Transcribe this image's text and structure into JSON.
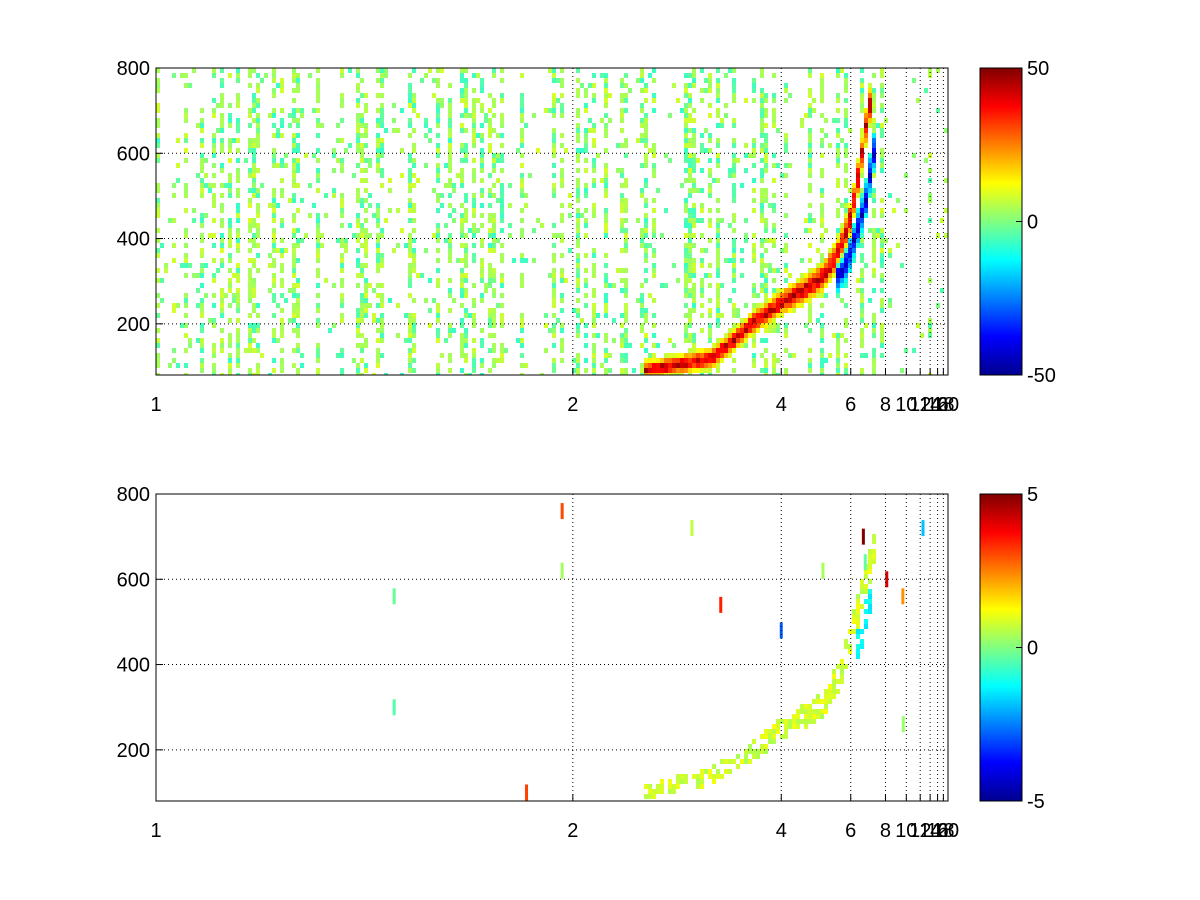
{
  "chart_data": [
    {
      "type": "heatmap",
      "title": "",
      "xlabel": "",
      "ylabel": "",
      "xlim": [
        1,
        20
      ],
      "ylim": [
        80,
        800
      ],
      "x_scale": "reciprocal",
      "x_ticks": [
        1,
        2,
        4,
        6,
        8,
        10,
        12,
        14,
        16,
        18,
        20
      ],
      "x_tick_labels": [
        "1",
        "2",
        "4",
        "6",
        "8",
        "10",
        "12",
        "14",
        "16",
        "18",
        "20"
      ],
      "y_ticks": [
        200,
        400,
        600,
        800
      ],
      "y_tick_labels": [
        "200",
        "400",
        "600",
        "800"
      ],
      "grid": true,
      "colormap": "jet",
      "clim": [
        -50,
        50
      ],
      "colorbar_ticks": [
        50,
        0,
        -50
      ],
      "colorbar_tick_labels": [
        "50",
        "0",
        "-50"
      ],
      "features": [
        {
          "kind": "ridge",
          "sign": "positive",
          "points": [
            [
              2.4,
              90
            ],
            [
              3.0,
              120
            ],
            [
              3.5,
              200
            ],
            [
              4.0,
              250
            ],
            [
              4.5,
              280
            ],
            [
              5.0,
              310
            ],
            [
              5.6,
              380
            ],
            [
              6.0,
              450
            ],
            [
              6.4,
              560
            ],
            [
              6.8,
              680
            ],
            [
              7.2,
              760
            ]
          ],
          "peak": 45
        },
        {
          "kind": "ridge",
          "sign": "negative",
          "points": [
            [
              5.4,
              300
            ],
            [
              5.9,
              350
            ],
            [
              6.3,
              420
            ],
            [
              6.8,
              500
            ],
            [
              7.0,
              560
            ],
            [
              7.3,
              620
            ]
          ],
          "peak": -45
        }
      ],
      "scattered_noise": {
        "x_range": [
          1,
          20
        ],
        "amplitude": 8
      }
    },
    {
      "type": "heatmap",
      "title": "",
      "xlabel": "",
      "ylabel": "",
      "xlim": [
        1,
        20
      ],
      "ylim": [
        80,
        800
      ],
      "x_scale": "reciprocal",
      "x_ticks": [
        1,
        2,
        4,
        6,
        8,
        10,
        12,
        14,
        16,
        18,
        20
      ],
      "x_tick_labels": [
        "1",
        "2",
        "4",
        "6",
        "8",
        "10",
        "12",
        "14",
        "16",
        "18",
        "20"
      ],
      "y_ticks": [
        200,
        400,
        600,
        800
      ],
      "y_tick_labels": [
        "200",
        "400",
        "600",
        "800"
      ],
      "grid": true,
      "colormap": "jet",
      "clim": [
        -5,
        5
      ],
      "colorbar_ticks": [
        5,
        0,
        -5
      ],
      "colorbar_tick_labels": [
        "5",
        "0",
        "-5"
      ],
      "features": [
        {
          "kind": "band",
          "value": 0.8,
          "points": [
            [
              2.4,
              100
            ],
            [
              3.0,
              140
            ],
            [
              4.0,
              250
            ],
            [
              5.0,
              310
            ],
            [
              5.6,
              380
            ],
            [
              6.0,
              460
            ],
            [
              6.5,
              560
            ],
            [
              7.0,
              640
            ],
            [
              7.3,
              700
            ]
          ]
        },
        {
          "kind": "band",
          "value": -1.2,
          "points": [
            [
              6.2,
              420
            ],
            [
              6.8,
              520
            ],
            [
              7.2,
              600
            ]
          ]
        }
      ],
      "sparse_points": [
        [
          1.4,
          560
        ],
        [
          1.4,
          300
        ],
        [
          1.95,
          760
        ],
        [
          1.95,
          620
        ],
        [
          2.8,
          720
        ],
        [
          3.1,
          540
        ],
        [
          4.0,
          480
        ],
        [
          5.0,
          620
        ],
        [
          6.6,
          700
        ],
        [
          6.7,
          640
        ],
        [
          8.1,
          600
        ],
        [
          9.6,
          560
        ],
        [
          9.65,
          260
        ],
        [
          12.5,
          720
        ],
        [
          1.8,
          100
        ]
      ]
    }
  ]
}
